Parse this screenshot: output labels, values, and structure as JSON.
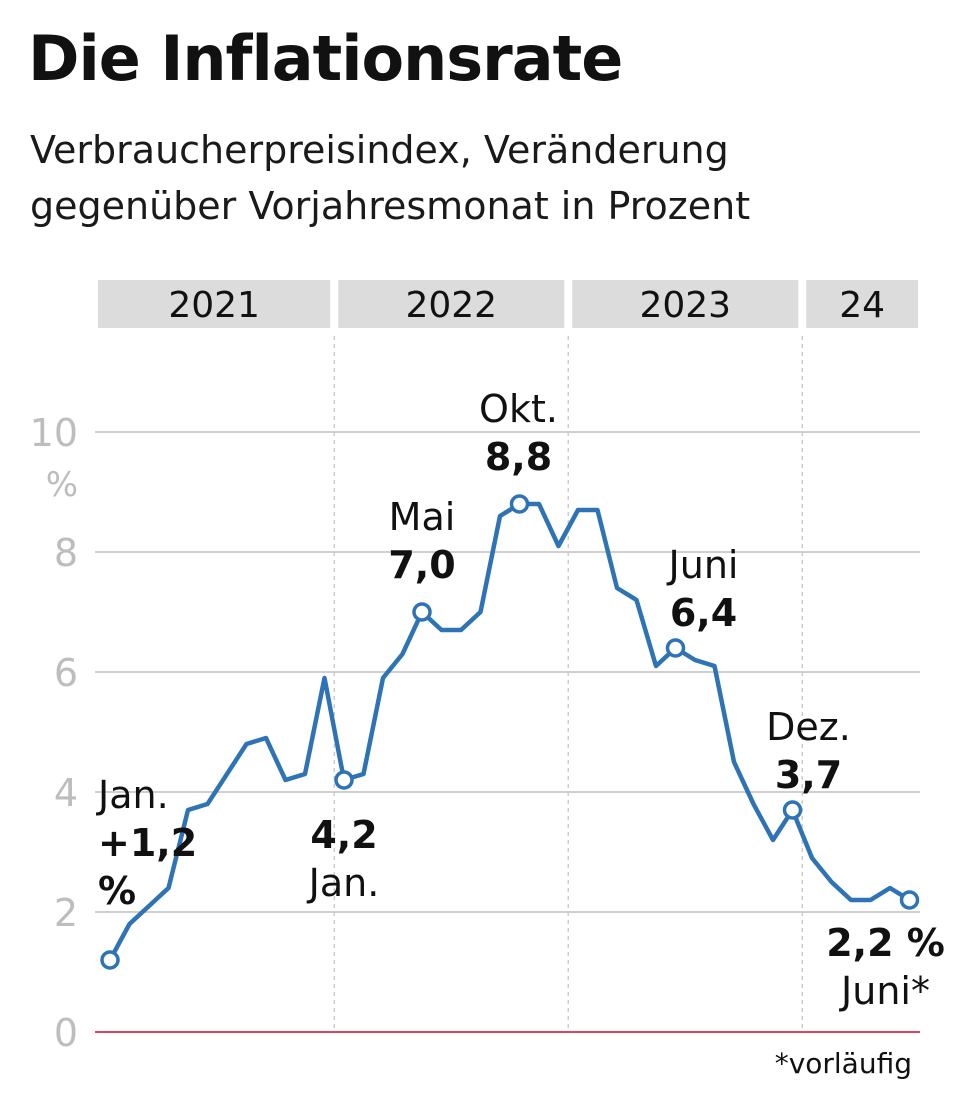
{
  "title": "Die Inflationsrate",
  "subtitle_lines": [
    "Verbraucherpreisindex, Veränderung",
    "gegenüber Vorjahresmonat in Prozent"
  ],
  "footnote": "*vorläufig",
  "colors": {
    "line": "#2f73b7",
    "grid": "#cfcfcf",
    "zero_line": "#d9455f",
    "tick_text": "#bdbdbd",
    "year_band": "#dcdcdc",
    "separator": "#cccccc"
  },
  "chart_data": {
    "type": "line",
    "x_start": "2021-01",
    "x_end": "2024-06",
    "year_bands": [
      {
        "label": "2021",
        "from": "2021-01",
        "to": "2021-12"
      },
      {
        "label": "2022",
        "from": "2022-01",
        "to": "2022-12"
      },
      {
        "label": "2023",
        "from": "2023-01",
        "to": "2023-12"
      },
      {
        "label": "24",
        "from": "2024-01",
        "to": "2024-06"
      }
    ],
    "y_ticks": [
      "0",
      "2",
      "4",
      "6",
      "8",
      "10"
    ],
    "y_unit": "%",
    "ylim": [
      0,
      10
    ],
    "grid": true,
    "series": [
      {
        "x": [
          "2021-01",
          "2021-02",
          "2021-03",
          "2021-04",
          "2021-05",
          "2021-06",
          "2021-07",
          "2021-08",
          "2021-09",
          "2021-10",
          "2021-11",
          "2021-12",
          "2022-01",
          "2022-02",
          "2022-03",
          "2022-04",
          "2022-05",
          "2022-06",
          "2022-07",
          "2022-08",
          "2022-09",
          "2022-10",
          "2022-11",
          "2022-12",
          "2023-01",
          "2023-02",
          "2023-03",
          "2023-04",
          "2023-05",
          "2023-06",
          "2023-07",
          "2023-08",
          "2023-09",
          "2023-10",
          "2023-11",
          "2023-12",
          "2024-01",
          "2024-02",
          "2024-03",
          "2024-04",
          "2024-05",
          "2024-06"
        ],
        "values": [
          1.2,
          1.8,
          2.1,
          2.4,
          3.7,
          3.8,
          4.3,
          4.8,
          4.9,
          4.2,
          4.3,
          5.9,
          4.2,
          4.3,
          5.9,
          6.3,
          7.0,
          6.7,
          6.7,
          7.0,
          8.6,
          8.8,
          8.8,
          8.1,
          8.7,
          8.7,
          7.4,
          7.2,
          6.1,
          6.4,
          6.2,
          6.1,
          4.5,
          3.8,
          3.2,
          3.7,
          2.9,
          2.5,
          2.2,
          2.2,
          2.4,
          2.2
        ]
      }
    ],
    "annotations": [
      {
        "x": "2021-01",
        "value": 1.2,
        "lines": [
          "Jan.",
          "+1,2",
          "%"
        ]
      },
      {
        "x": "2022-01",
        "value": 4.2,
        "lines": [
          "4,2",
          "Jan."
        ]
      },
      {
        "x": "2022-05",
        "value": 7.0,
        "lines": [
          "Mai",
          "7,0"
        ]
      },
      {
        "x": "2022-10",
        "value": 8.8,
        "lines": [
          "Okt.",
          "8,8"
        ]
      },
      {
        "x": "2023-06",
        "value": 6.4,
        "lines": [
          "Juni",
          "6,4"
        ]
      },
      {
        "x": "2023-12",
        "value": 3.7,
        "lines": [
          "Dez.",
          "3,7"
        ]
      },
      {
        "x": "2024-06",
        "value": 2.2,
        "lines": [
          "2,2 %",
          "Juni*"
        ]
      }
    ]
  }
}
